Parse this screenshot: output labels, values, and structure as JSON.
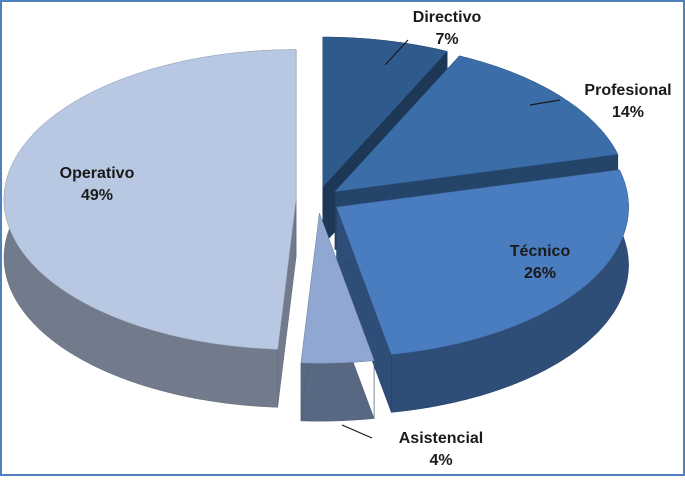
{
  "chart_data": {
    "type": "pie",
    "categories": [
      "Directivo",
      "Profesional",
      "Técnico",
      "Asistencial",
      "Operativo"
    ],
    "values": [
      7,
      14,
      26,
      4,
      49
    ],
    "value_labels": [
      "7%",
      "14%",
      "26%",
      "4%",
      "49%"
    ],
    "colors": [
      "#2f5b8c",
      "#3b6ea9",
      "#4a7cc0",
      "#90a7d2",
      "#b8c7e2"
    ]
  }
}
